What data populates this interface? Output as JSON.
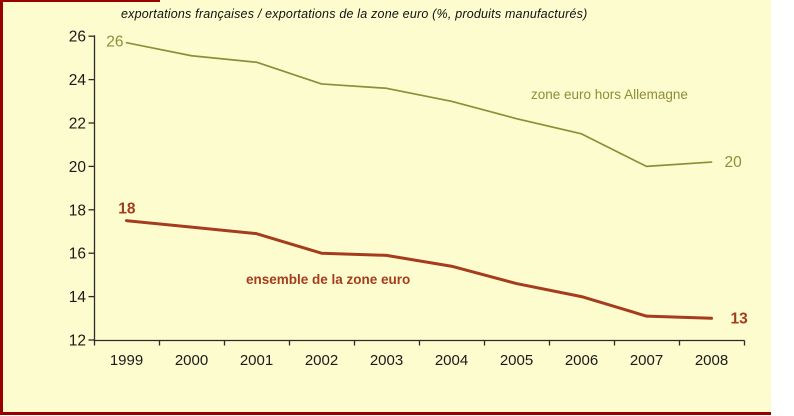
{
  "frame": {
    "page_background": "#FFFFFF",
    "plot_background": "#FCFCCE",
    "border_color": "#990000",
    "axis_color": "#2B2B2B",
    "tick_label_color": "#1A1A1A"
  },
  "chart_data": {
    "type": "line",
    "title": "exportations françaises / exportations de la zone euro (%, produits manufacturés)",
    "xlabel": "",
    "ylabel": "",
    "categories": [
      "1999",
      "2000",
      "2001",
      "2002",
      "2003",
      "2004",
      "2005",
      "2006",
      "2007",
      "2008"
    ],
    "yticks": [
      "12",
      "14",
      "16",
      "18",
      "20",
      "22",
      "24",
      "26"
    ],
    "ylim": [
      12,
      26
    ],
    "grid": false,
    "legend_position": "inline-text-annotations",
    "series": [
      {
        "name": "zone euro hors Allemagne",
        "color": "#8E8E38",
        "line_width": 1.7,
        "values": [
          25.7,
          25.1,
          24.8,
          23.8,
          23.6,
          23.0,
          22.2,
          21.5,
          20.0,
          20.2
        ],
        "label_start": "26",
        "label_end": "20",
        "label_bold": false
      },
      {
        "name": "ensemble de la zone euro",
        "color": "#A63C1E",
        "line_width": 3,
        "values": [
          17.5,
          17.2,
          16.9,
          16.0,
          15.9,
          15.4,
          14.6,
          14.0,
          13.1,
          13.0
        ],
        "label_start": "18",
        "label_end": "13",
        "label_bold": true
      }
    ]
  }
}
